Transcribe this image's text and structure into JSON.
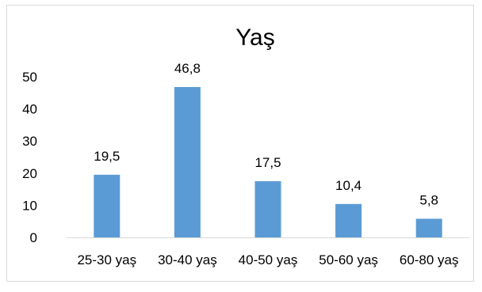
{
  "chart_data": {
    "type": "bar",
    "title": "Yaş",
    "categories": [
      "25-30 yaş",
      "30-40 yaş",
      "40-50 yaş",
      "50-60 yaş",
      "60-80 yaş"
    ],
    "values": [
      19.5,
      46.8,
      17.5,
      10.4,
      5.8
    ],
    "data_labels": [
      "19,5",
      "46,8",
      "17,5",
      "10,4",
      "5,8"
    ],
    "yticks": [
      0,
      10,
      20,
      30,
      40,
      50
    ],
    "ylim": [
      0,
      50
    ],
    "grid": false,
    "legend": "none",
    "bar_color": "#5b9bd5",
    "axis_color": "#d9d9d9"
  }
}
